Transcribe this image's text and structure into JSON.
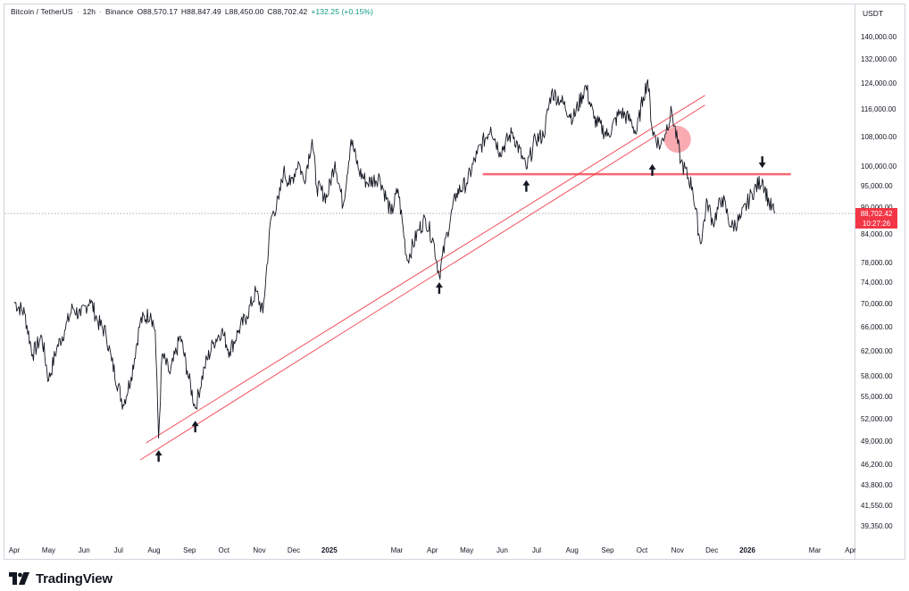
{
  "legend": {
    "symbol": "Bitcoin / TetherUS",
    "sep1": "·",
    "interval": "12h",
    "sep2": "·",
    "exchange": "Binance",
    "open": "O88,570.17",
    "high": "H88,847.49",
    "low": "L88,450.00",
    "close": "C88,702.42",
    "change": "+132.25 (+0.15%)"
  },
  "currency": "USDT",
  "last_price": {
    "value": "88,702.42",
    "countdown": "10:27:26"
  },
  "brand": "TradingView",
  "colors": {
    "candle": "#131722",
    "trendline": "#f23645",
    "support": "#f23645",
    "highlight": "#f23645",
    "last_price_tag": "#f23645"
  },
  "chart_data": {
    "type": "line",
    "symbol": "Bitcoin / TetherUS",
    "interval": "12h",
    "y_axis_labels": [
      "140,000.00",
      "132,000.00",
      "124,000.00",
      "116,000.00",
      "108,000.00",
      "100,000.00",
      "95,000.00",
      "90,000.00",
      "84,000.00",
      "78,000.00",
      "74,000.00",
      "70,000.00",
      "66,000.00",
      "62,000.00",
      "58,000.00",
      "55,000.00",
      "52,000.00",
      "49,000.00",
      "46,200.00",
      "43,800.00",
      "41,550.00",
      "39,350.00"
    ],
    "y_axis_values": [
      140000,
      132000,
      124000,
      116000,
      108000,
      100000,
      95000,
      90000,
      84000,
      78000,
      74000,
      70000,
      66000,
      62000,
      58000,
      55000,
      52000,
      49000,
      46200,
      43800,
      41550,
      39350
    ],
    "x_axis_labels": [
      {
        "label": "Apr",
        "date": "2024-04-01",
        "year": false
      },
      {
        "label": "May",
        "date": "2024-05-01",
        "year": false
      },
      {
        "label": "Jun",
        "date": "2024-06-01",
        "year": false
      },
      {
        "label": "Jul",
        "date": "2024-07-01",
        "year": false
      },
      {
        "label": "Aug",
        "date": "2024-08-01",
        "year": false
      },
      {
        "label": "Sep",
        "date": "2024-09-01",
        "year": false
      },
      {
        "label": "Oct",
        "date": "2024-10-01",
        "year": false
      },
      {
        "label": "Nov",
        "date": "2024-11-01",
        "year": false
      },
      {
        "label": "Dec",
        "date": "2024-12-01",
        "year": false
      },
      {
        "label": "2025",
        "date": "2025-01-01",
        "year": true
      },
      {
        "label": "Mar",
        "date": "2025-03-01",
        "year": false
      },
      {
        "label": "Apr",
        "date": "2025-04-01",
        "year": false
      },
      {
        "label": "May",
        "date": "2025-05-01",
        "year": false
      },
      {
        "label": "Jun",
        "date": "2025-06-01",
        "year": false
      },
      {
        "label": "Jul",
        "date": "2025-07-01",
        "year": false
      },
      {
        "label": "Aug",
        "date": "2025-08-01",
        "year": false
      },
      {
        "label": "Sep",
        "date": "2025-09-01",
        "year": false
      },
      {
        "label": "Oct",
        "date": "2025-10-01",
        "year": false
      },
      {
        "label": "Nov",
        "date": "2025-11-01",
        "year": false
      },
      {
        "label": "Dec",
        "date": "2025-12-01",
        "year": false
      },
      {
        "label": "2026",
        "date": "2026-01-01",
        "year": true
      },
      {
        "label": "Mar",
        "date": "2026-03-01",
        "year": false
      },
      {
        "label": "Apr",
        "date": "2026-04-01",
        "year": false
      }
    ],
    "series": [
      {
        "points": [
          [
            "2024-04-01",
            70500
          ],
          [
            "2024-04-10",
            68500
          ],
          [
            "2024-04-17",
            61500
          ],
          [
            "2024-04-25",
            64500
          ],
          [
            "2024-05-01",
            57500
          ],
          [
            "2024-05-08",
            62500
          ],
          [
            "2024-05-15",
            65500
          ],
          [
            "2024-05-22",
            69500
          ],
          [
            "2024-05-29",
            68000
          ],
          [
            "2024-06-06",
            71000
          ],
          [
            "2024-06-13",
            67000
          ],
          [
            "2024-06-20",
            65000
          ],
          [
            "2024-06-25",
            60500
          ],
          [
            "2024-07-05",
            54000
          ],
          [
            "2024-07-12",
            58000
          ],
          [
            "2024-07-20",
            67000
          ],
          [
            "2024-07-29",
            68500
          ],
          [
            "2024-08-02",
            65500
          ],
          [
            "2024-08-05",
            49500
          ],
          [
            "2024-08-08",
            61500
          ],
          [
            "2024-08-15",
            58500
          ],
          [
            "2024-08-24",
            64500
          ],
          [
            "2024-08-30",
            59000
          ],
          [
            "2024-09-06",
            53500
          ],
          [
            "2024-09-14",
            59500
          ],
          [
            "2024-09-22",
            63500
          ],
          [
            "2024-09-29",
            65500
          ],
          [
            "2024-10-06",
            62000
          ],
          [
            "2024-10-14",
            65500
          ],
          [
            "2024-10-21",
            68000
          ],
          [
            "2024-10-29",
            72500
          ],
          [
            "2024-11-04",
            68500
          ],
          [
            "2024-11-11",
            87500
          ],
          [
            "2024-11-18",
            92000
          ],
          [
            "2024-11-22",
            99000
          ],
          [
            "2024-11-28",
            95500
          ],
          [
            "2024-12-05",
            101500
          ],
          [
            "2024-12-10",
            96500
          ],
          [
            "2024-12-17",
            107500
          ],
          [
            "2024-12-21",
            95000
          ],
          [
            "2024-12-30",
            92500
          ],
          [
            "2025-01-06",
            101500
          ],
          [
            "2025-01-13",
            90500
          ],
          [
            "2025-01-20",
            107500
          ],
          [
            "2025-01-27",
            99000
          ],
          [
            "2025-02-03",
            96000
          ],
          [
            "2025-02-14",
            97500
          ],
          [
            "2025-02-24",
            88500
          ],
          [
            "2025-03-02",
            94500
          ],
          [
            "2025-03-10",
            78500
          ],
          [
            "2025-03-20",
            85000
          ],
          [
            "2025-03-26",
            87500
          ],
          [
            "2025-04-02",
            82500
          ],
          [
            "2025-04-07",
            75500
          ],
          [
            "2025-04-14",
            84500
          ],
          [
            "2025-04-22",
            93500
          ],
          [
            "2025-05-01",
            96000
          ],
          [
            "2025-05-10",
            103500
          ],
          [
            "2025-05-22",
            111000
          ],
          [
            "2025-05-30",
            104000
          ],
          [
            "2025-06-10",
            109500
          ],
          [
            "2025-06-22",
            99500
          ],
          [
            "2025-06-30",
            107500
          ],
          [
            "2025-07-07",
            108500
          ],
          [
            "2025-07-14",
            121500
          ],
          [
            "2025-07-22",
            119000
          ],
          [
            "2025-08-02",
            113500
          ],
          [
            "2025-08-13",
            123500
          ],
          [
            "2025-08-20",
            113500
          ],
          [
            "2025-09-01",
            108500
          ],
          [
            "2025-09-12",
            115500
          ],
          [
            "2025-09-22",
            112500
          ],
          [
            "2025-09-26",
            109000
          ],
          [
            "2025-10-02",
            120000
          ],
          [
            "2025-10-06",
            125500
          ],
          [
            "2025-10-10",
            110000
          ],
          [
            "2025-10-17",
            105500
          ],
          [
            "2025-10-27",
            115500
          ],
          [
            "2025-11-04",
            101500
          ],
          [
            "2025-11-14",
            95000
          ],
          [
            "2025-11-21",
            82000
          ],
          [
            "2025-11-27",
            91500
          ],
          [
            "2025-12-02",
            86500
          ],
          [
            "2025-12-10",
            92500
          ],
          [
            "2025-12-18",
            85500
          ],
          [
            "2025-12-26",
            87500
          ],
          [
            "2026-01-05",
            93500
          ],
          [
            "2026-01-14",
            97000
          ],
          [
            "2026-01-20",
            91000
          ],
          [
            "2026-01-25",
            88702
          ]
        ]
      }
    ],
    "annotations": {
      "trendlines": [
        {
          "from": [
            "2024-07-20",
            46800
          ],
          "to": [
            "2025-11-25",
            117500
          ]
        },
        {
          "from": [
            "2024-07-25",
            48900
          ],
          "to": [
            "2025-11-25",
            120500
          ]
        }
      ],
      "support_line": {
        "value": 98200,
        "from": "2025-05-15",
        "to": "2026-02-08"
      },
      "highlight_circle": {
        "center": [
          "2025-11-01",
          107500
        ]
      },
      "up_arrows": [
        [
          "2024-08-05",
          48000
        ],
        [
          "2024-09-06",
          51800
        ],
        [
          "2025-04-07",
          74200
        ],
        [
          "2025-06-22",
          96700
        ],
        [
          "2025-10-10",
          100800
        ]
      ],
      "down_arrows": [
        [
          "2026-01-14",
          99800
        ]
      ]
    },
    "last_price": 88702.42,
    "y_scale": "log",
    "grid": false
  }
}
